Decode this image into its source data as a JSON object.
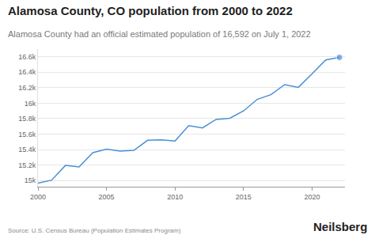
{
  "chart_data": {
    "type": "line",
    "title": "Alamosa County, CO population from 2000 to 2022",
    "subtitle": "Alamosa County had an official estimated population of 16,592 on July 1, 2022",
    "source": "Source: U.S. Census Bureau (Population Estimates Program)",
    "brand": "Neilsberg",
    "x": [
      2000,
      2001,
      2002,
      2003,
      2004,
      2005,
      2006,
      2007,
      2008,
      2009,
      2010,
      2011,
      2012,
      2013,
      2014,
      2015,
      2016,
      2017,
      2018,
      2019,
      2020,
      2021,
      2022
    ],
    "values": [
      14966,
      15005,
      15195,
      15175,
      15360,
      15405,
      15380,
      15390,
      15520,
      15525,
      15510,
      15710,
      15680,
      15790,
      15805,
      15900,
      16050,
      16110,
      16240,
      16205,
      16380,
      16560,
      16592
    ],
    "color": "#4a8fd6",
    "marker": "circle",
    "xlim": [
      2000,
      2022.4
    ],
    "xticks": [
      2000,
      2005,
      2010,
      2015,
      2020
    ],
    "ylim": [
      14920,
      16700
    ],
    "yticks": [
      {
        "value": 15000,
        "label": "15k"
      },
      {
        "value": 15200,
        "label": "15.2k"
      },
      {
        "value": 15400,
        "label": "15.4k"
      },
      {
        "value": 15600,
        "label": "15.6k"
      },
      {
        "value": 15800,
        "label": "15.8k"
      },
      {
        "value": 16000,
        "label": "16k"
      },
      {
        "value": 16200,
        "label": "16.2k"
      },
      {
        "value": 16400,
        "label": "16.4k"
      },
      {
        "value": 16600,
        "label": "16.6k"
      }
    ],
    "grid": true
  }
}
